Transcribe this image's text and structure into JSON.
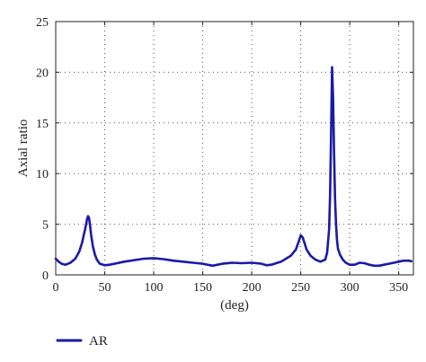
{
  "chart_data": {
    "type": "line",
    "title": "",
    "xlabel": "(deg)",
    "ylabel": "Axial ratio",
    "xlim": [
      0,
      365
    ],
    "ylim": [
      0,
      25
    ],
    "xticks": [
      0,
      50,
      100,
      150,
      200,
      250,
      300,
      350
    ],
    "yticks": [
      0,
      5,
      10,
      15,
      20,
      25
    ],
    "grid": "dotted",
    "legend_position": "bottom-left",
    "series": [
      {
        "name": "AR",
        "color": "#1a1aa6",
        "x": [
          0,
          3,
          6,
          10,
          15,
          20,
          24,
          27,
          30,
          32,
          33,
          34,
          35,
          36,
          38,
          40,
          42,
          45,
          50,
          55,
          60,
          70,
          80,
          90,
          100,
          110,
          120,
          130,
          140,
          150,
          160,
          170,
          180,
          190,
          200,
          210,
          215,
          220,
          230,
          240,
          245,
          248,
          250,
          252,
          254,
          256,
          260,
          265,
          270,
          275,
          277,
          279,
          280,
          281,
          282,
          283,
          284,
          285,
          286,
          287,
          288,
          290,
          293,
          296,
          300,
          305,
          310,
          315,
          320,
          325,
          330,
          335,
          340,
          345,
          350,
          355,
          360,
          363
        ],
        "y": [
          1.6,
          1.3,
          1.1,
          1.0,
          1.2,
          1.6,
          2.3,
          3.2,
          4.5,
          5.5,
          5.8,
          5.6,
          4.9,
          4.0,
          2.8,
          2.0,
          1.5,
          1.1,
          0.95,
          1.0,
          1.1,
          1.3,
          1.45,
          1.6,
          1.65,
          1.55,
          1.4,
          1.3,
          1.2,
          1.1,
          0.9,
          1.1,
          1.2,
          1.15,
          1.2,
          1.1,
          0.95,
          1.0,
          1.3,
          1.9,
          2.5,
          3.3,
          3.9,
          3.7,
          3.1,
          2.5,
          1.9,
          1.5,
          1.3,
          1.5,
          2.2,
          4.5,
          8.0,
          14.0,
          20.5,
          17.5,
          12.0,
          7.5,
          5.0,
          3.5,
          2.6,
          2.0,
          1.5,
          1.2,
          1.0,
          1.0,
          1.2,
          1.15,
          1.0,
          0.9,
          0.9,
          1.0,
          1.1,
          1.2,
          1.3,
          1.4,
          1.4,
          1.35
        ]
      }
    ]
  }
}
